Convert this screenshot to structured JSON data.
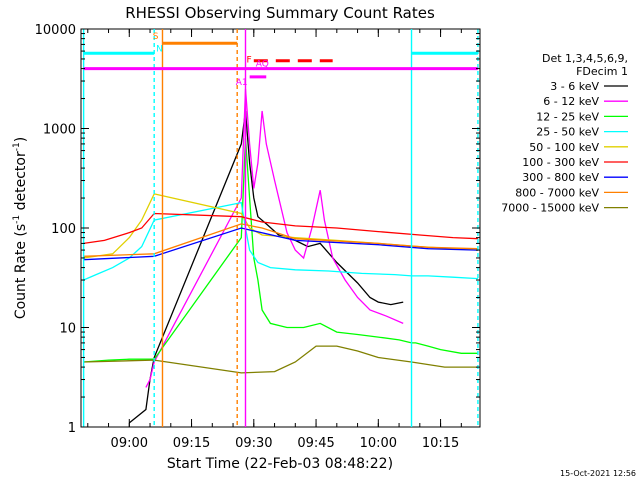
{
  "chart_data": {
    "type": "line",
    "title": "RHESSI Observing Summary Count Rates",
    "xlabel": "Start Time (22-Feb-03 08:48:22)",
    "ylabel": "Count Rate (s",
    "ylabel_sup": "-1",
    "ylabel_tail": " detector",
    "ylabel_close": ")",
    "timestamp": "15-Oct-2021 12:56",
    "y_scale": "log",
    "ylim": [
      1,
      10000
    ],
    "xlim": [
      "08:48:22",
      "10:24:30"
    ],
    "y_ticks": [
      {
        "value": 1,
        "label": "1"
      },
      {
        "value": 10,
        "label": "10"
      },
      {
        "value": 100,
        "label": "100"
      },
      {
        "value": 1000,
        "label": "1000"
      },
      {
        "value": 10000,
        "label": "10000"
      }
    ],
    "x_ticks": [
      {
        "value": "09:00",
        "label": "09:00"
      },
      {
        "value": "09:15",
        "label": "09:15"
      },
      {
        "value": "09:30",
        "label": "09:30"
      },
      {
        "value": "09:45",
        "label": "09:45"
      },
      {
        "value": "10:00",
        "label": "10:00"
      },
      {
        "value": "10:15",
        "label": "10:15"
      }
    ],
    "legend_header": [
      "Det 1,3,4,5,6,9,",
      "FDecim 1"
    ],
    "legend_position": "right",
    "series": [
      {
        "name": "3 - 6 keV",
        "color": "#000000",
        "points": [
          [
            "09:00",
            1.1
          ],
          [
            "09:04",
            1.5
          ],
          [
            "09:05",
            3
          ],
          [
            "09:06",
            5
          ],
          [
            "09:27",
            700
          ],
          [
            "09:28",
            1500
          ],
          [
            "09:29",
            450
          ],
          [
            "09:30",
            200
          ],
          [
            "09:31",
            130
          ],
          [
            "09:33",
            110
          ],
          [
            "09:36",
            85
          ],
          [
            "09:40",
            75
          ],
          [
            "09:43",
            65
          ],
          [
            "09:46",
            70
          ],
          [
            "09:50",
            45
          ],
          [
            "09:55",
            28
          ],
          [
            "09:58",
            20
          ],
          [
            "10:00",
            18
          ],
          [
            "10:03",
            17
          ],
          [
            "10:06",
            18
          ]
        ]
      },
      {
        "name": "6 - 12 keV",
        "color": "#ff00ff",
        "points": [
          [
            "09:04",
            2.5
          ],
          [
            "09:05",
            3
          ],
          [
            "09:06",
            4.5
          ],
          [
            "09:27",
            200
          ],
          [
            "09:28",
            2500
          ],
          [
            "09:29",
            700
          ],
          [
            "09:30",
            250
          ],
          [
            "09:31",
            450
          ],
          [
            "09:32",
            1500
          ],
          [
            "09:33",
            700
          ],
          [
            "09:35",
            300
          ],
          [
            "09:38",
            90
          ],
          [
            "09:40",
            60
          ],
          [
            "09:42",
            50
          ],
          [
            "09:44",
            100
          ],
          [
            "09:46",
            240
          ],
          [
            "09:47",
            120
          ],
          [
            "09:49",
            50
          ],
          [
            "09:52",
            30
          ],
          [
            "09:55",
            20
          ],
          [
            "09:58",
            15
          ],
          [
            "10:02",
            13
          ],
          [
            "10:06",
            11
          ]
        ]
      },
      {
        "name": "12 - 25 keV",
        "color": "#00ff00",
        "points": [
          [
            "08:49",
            4.5
          ],
          [
            "08:55",
            4.7
          ],
          [
            "09:00",
            4.8
          ],
          [
            "09:06",
            4.8
          ],
          [
            "09:27",
            80
          ],
          [
            "09:28",
            800
          ],
          [
            "09:29",
            200
          ],
          [
            "09:30",
            50
          ],
          [
            "09:31",
            30
          ],
          [
            "09:32",
            15
          ],
          [
            "09:34",
            11
          ],
          [
            "09:38",
            10
          ],
          [
            "09:42",
            10
          ],
          [
            "09:46",
            11
          ],
          [
            "09:50",
            9
          ],
          [
            "09:55",
            8.5
          ],
          [
            "10:00",
            8
          ],
          [
            "10:05",
            7.5
          ],
          [
            "10:08",
            7
          ],
          [
            "10:09",
            7
          ],
          [
            "10:12",
            6.5
          ],
          [
            "10:15",
            6
          ],
          [
            "10:20",
            5.5
          ],
          [
            "10:24",
            5.5
          ]
        ]
      },
      {
        "name": "25 - 50 keV",
        "color": "#00ffff",
        "points": [
          [
            "08:49",
            30
          ],
          [
            "08:52",
            34
          ],
          [
            "08:56",
            40
          ],
          [
            "09:00",
            50
          ],
          [
            "09:03",
            65
          ],
          [
            "09:06",
            120
          ],
          [
            "09:27",
            180
          ],
          [
            "09:28",
            100
          ],
          [
            "09:29",
            60
          ],
          [
            "09:31",
            45
          ],
          [
            "09:34",
            40
          ],
          [
            "09:40",
            38
          ],
          [
            "09:48",
            37
          ],
          [
            "09:56",
            35
          ],
          [
            "10:04",
            34
          ],
          [
            "10:08",
            33
          ],
          [
            "10:12",
            33
          ],
          [
            "10:18",
            32
          ],
          [
            "10:24",
            31
          ]
        ]
      },
      {
        "name": "50 - 100 keV",
        "color": "#e0d000",
        "points": [
          [
            "08:49",
            50
          ],
          [
            "08:56",
            55
          ],
          [
            "09:00",
            80
          ],
          [
            "09:03",
            120
          ],
          [
            "09:06",
            220
          ],
          [
            "09:27",
            140
          ],
          [
            "09:29",
            100
          ],
          [
            "09:32",
            85
          ],
          [
            "09:40",
            80
          ],
          [
            "09:50",
            75
          ],
          [
            "10:00",
            70
          ],
          [
            "10:10",
            65
          ],
          [
            "10:18",
            62
          ],
          [
            "10:24",
            60
          ]
        ]
      },
      {
        "name": "100 - 300 keV",
        "color": "#ff0000",
        "points": [
          [
            "08:49",
            70
          ],
          [
            "08:54",
            75
          ],
          [
            "09:00",
            90
          ],
          [
            "09:03",
            100
          ],
          [
            "09:06",
            140
          ],
          [
            "09:27",
            130
          ],
          [
            "09:32",
            115
          ],
          [
            "09:40",
            105
          ],
          [
            "09:50",
            100
          ],
          [
            "10:00",
            92
          ],
          [
            "10:10",
            85
          ],
          [
            "10:18",
            80
          ],
          [
            "10:24",
            78
          ]
        ]
      },
      {
        "name": "300 - 800 keV",
        "color": "#0000ff",
        "points": [
          [
            "08:49",
            48
          ],
          [
            "09:06",
            52
          ],
          [
            "09:27",
            100
          ],
          [
            "09:40",
            75
          ],
          [
            "10:00",
            68
          ],
          [
            "10:12",
            62
          ],
          [
            "10:24",
            60
          ]
        ]
      },
      {
        "name": "800 - 7000 keV",
        "color": "#ff8000",
        "points": [
          [
            "08:49",
            52
          ],
          [
            "09:06",
            55
          ],
          [
            "09:27",
            110
          ],
          [
            "09:32",
            100
          ],
          [
            "09:40",
            78
          ],
          [
            "10:00",
            70
          ],
          [
            "10:12",
            64
          ],
          [
            "10:24",
            62
          ]
        ]
      },
      {
        "name": "7000 - 15000 keV",
        "color": "#808000",
        "points": [
          [
            "08:49",
            4.5
          ],
          [
            "09:06",
            4.7
          ],
          [
            "09:27",
            3.5
          ],
          [
            "09:35",
            3.6
          ],
          [
            "09:40",
            4.5
          ],
          [
            "09:45",
            6.5
          ],
          [
            "09:50",
            6.5
          ],
          [
            "09:55",
            5.8
          ],
          [
            "10:00",
            5
          ],
          [
            "10:08",
            4.5
          ],
          [
            "10:16",
            4
          ],
          [
            "10:24",
            4
          ]
        ]
      }
    ],
    "flag_lines": [
      {
        "label": "N",
        "color": "#00ffff",
        "y": 5700,
        "segments": [
          [
            "08:49",
            "09:06"
          ],
          [
            "10:08",
            "10:24"
          ]
        ]
      },
      {
        "label": "S",
        "color": "#ff8000",
        "y": 7200,
        "segments": [
          [
            "09:08",
            "09:26"
          ]
        ]
      },
      {
        "label": "F",
        "color": "#ff0000",
        "y": 4800,
        "dashed": true,
        "segments": [
          [
            "09:30",
            "09:49"
          ]
        ]
      },
      {
        "label": "AQ",
        "color": "#ff00ff",
        "y": 4000,
        "segments": [
          [
            "08:49",
            "10:24"
          ]
        ]
      },
      {
        "label": "A1",
        "color": "#ff00ff",
        "y": 3300,
        "segments": [
          [
            "09:29",
            "09:33"
          ]
        ]
      }
    ],
    "vertical_lines": [
      {
        "time": "08:49",
        "color": "#00ffff",
        "style": "solid"
      },
      {
        "time": "09:06",
        "color": "#00ffff",
        "style": "dashed"
      },
      {
        "time": "09:08",
        "color": "#ff8000",
        "style": "solid"
      },
      {
        "time": "09:26",
        "color": "#ff8000",
        "style": "dashed"
      },
      {
        "time": "09:28",
        "color": "#ff00ff",
        "style": "solid"
      },
      {
        "time": "10:08",
        "color": "#00ffff",
        "style": "solid"
      },
      {
        "time": "10:24",
        "color": "#00ffff",
        "style": "dashed"
      }
    ],
    "grid": false
  }
}
